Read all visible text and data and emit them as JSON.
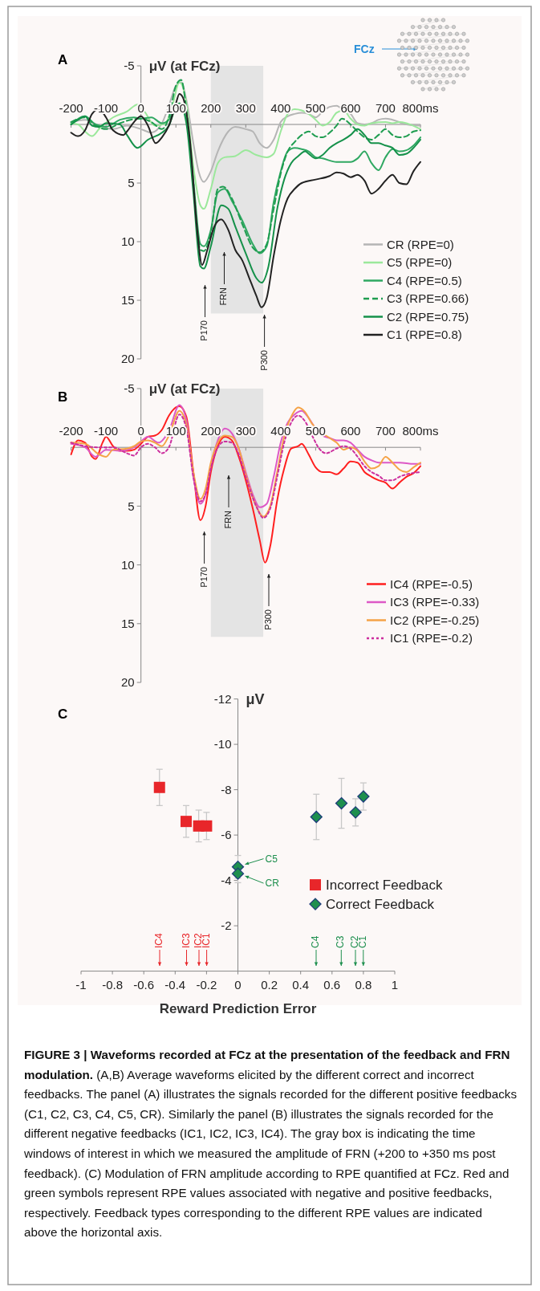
{
  "chart_data": [
    {
      "type": "line",
      "title": "A",
      "ylabel": "μV (at FCz)",
      "xlim": [
        -200,
        800
      ],
      "ylim": [
        20,
        -5
      ],
      "xticks": [
        -200,
        -100,
        0,
        100,
        200,
        300,
        400,
        500,
        600,
        700,
        {
          "value": 800,
          "label": "800ms"
        }
      ],
      "yticks": [
        -5,
        5,
        10,
        15,
        20
      ],
      "legend": "bottom right",
      "bands": [
        {
          "axis": "x",
          "from": 200,
          "to": 350,
          "color": "#e4e4e4"
        }
      ],
      "annotations": [
        "FCz",
        "P170",
        "FRN",
        "P300"
      ],
      "series": [
        {
          "name": "CR (RPE=0)",
          "color": "#b5b5b5",
          "x": [
            -200,
            -160,
            -120,
            -80,
            -40,
            0,
            30,
            60,
            80,
            100,
            115,
            130,
            150,
            165,
            180,
            200,
            220,
            250,
            270,
            300,
            320,
            340,
            360,
            380,
            400,
            420,
            440,
            460,
            480,
            500,
            520,
            540,
            560,
            580,
            600,
            620,
            640,
            660,
            680,
            700,
            720,
            760,
            800
          ],
          "values": [
            -0.2,
            -0.4,
            0.1,
            0.4,
            0.1,
            0.4,
            0.7,
            -0.1,
            -1.6,
            -3.3,
            -3.6,
            -2.1,
            1.6,
            4.0,
            4.9,
            4.0,
            2.3,
            0.6,
            0.2,
            0.4,
            0.6,
            1.6,
            2.0,
            1.3,
            -0.2,
            -0.7,
            -0.9,
            -1.0,
            -0.9,
            -0.6,
            -1.1,
            -1.5,
            -1.6,
            -1.2,
            -0.9,
            -0.1,
            0,
            -0.1,
            -0.4,
            -0.5,
            -0.4,
            0,
            0.1
          ]
        },
        {
          "name": "C5 (RPE=0)",
          "color": "#9be89b",
          "x": [
            -200,
            -180,
            -160,
            -140,
            -120,
            -80,
            -40,
            -10,
            10,
            40,
            70,
            90,
            110,
            130,
            150,
            170,
            180,
            200,
            220,
            240,
            270,
            300,
            330,
            360,
            380,
            400,
            420,
            440,
            460,
            480,
            500,
            520,
            540,
            560,
            580,
            600,
            620,
            640,
            660,
            700,
            720,
            740,
            760,
            800
          ],
          "values": [
            -0.1,
            0,
            0.6,
            1.0,
            0.4,
            -0.6,
            -1.1,
            -1.7,
            -1.1,
            0.1,
            -0.1,
            -1.6,
            -3.6,
            -1.8,
            3.6,
            6.9,
            7.2,
            5.5,
            3.3,
            2.8,
            2.7,
            2.2,
            2.6,
            2.8,
            2.5,
            0.6,
            -0.9,
            -1.3,
            -1.2,
            -0.9,
            -0.4,
            0.1,
            -0.2,
            -1.0,
            -1.2,
            -0.5,
            0,
            0.1,
            -0.1,
            -0.2,
            -0.1,
            -0.2,
            -0.1,
            0.4
          ]
        },
        {
          "name": "C4 (RPE=0.5)",
          "color": "#2fa862",
          "x": [
            -200,
            -160,
            -130,
            -100,
            -60,
            -20,
            0,
            30,
            60,
            80,
            100,
            110,
            130,
            150,
            170,
            180,
            200,
            220,
            240,
            260,
            290,
            320,
            340,
            360,
            380,
            400,
            420,
            440,
            460,
            480,
            500,
            520,
            560,
            600,
            620,
            640,
            660,
            680,
            700,
            720,
            740,
            760,
            780,
            800
          ],
          "values": [
            0,
            -0.7,
            0,
            0.2,
            -0.4,
            -0.6,
            -0.5,
            -0.6,
            -0.1,
            -0.4,
            -1.7,
            -1.8,
            -0.4,
            4.8,
            10.2,
            10.4,
            9.0,
            5.8,
            5.5,
            6.5,
            8.2,
            10.2,
            11.0,
            10.4,
            6.6,
            4.0,
            2.3,
            2.0,
            2.1,
            2.3,
            2.8,
            2.9,
            3.2,
            3.2,
            2.9,
            2.3,
            3.3,
            3.9,
            2.8,
            2.1,
            2.3,
            2.2,
            1.8,
            1.1
          ]
        },
        {
          "name": "C3 (RPE=0.66)",
          "color": "#1f9d50",
          "line_style": "dashed",
          "x": [
            -200,
            -160,
            -130,
            -100,
            -60,
            -30,
            0,
            30,
            60,
            80,
            100,
            115,
            130,
            150,
            170,
            180,
            200,
            220,
            235,
            260,
            290,
            320,
            340,
            360,
            380,
            400,
            420,
            440,
            460,
            480,
            500,
            520,
            540,
            560,
            575,
            600,
            620,
            640,
            660,
            680,
            700,
            720,
            740,
            760,
            780,
            800
          ],
          "values": [
            -0.2,
            -0.6,
            0.1,
            0.4,
            -0.1,
            -0.4,
            -0.5,
            -0.2,
            0.4,
            -0.6,
            -3.3,
            -3.8,
            -1.3,
            5.0,
            10.7,
            10.8,
            9.2,
            5.5,
            5.3,
            6.3,
            8.5,
            10.5,
            10.9,
            10.2,
            7.2,
            4.2,
            2.3,
            1.5,
            0.9,
            0.6,
            1.0,
            1.1,
            0.7,
            0.1,
            -0.5,
            0,
            0.6,
            1.1,
            1.3,
            0.9,
            0.4,
            0.9,
            1.1,
            1.0,
            0.6,
            0.5
          ]
        },
        {
          "name": "C2 (RPE=0.75)",
          "color": "#15914a",
          "x": [
            -200,
            -180,
            -160,
            -140,
            -120,
            -100,
            -60,
            -40,
            -10,
            20,
            60,
            80,
            100,
            110,
            130,
            150,
            170,
            180,
            200,
            230,
            250,
            270,
            300,
            330,
            345,
            365,
            390,
            410,
            430,
            450,
            470,
            480,
            500,
            520,
            540,
            560,
            580,
            600,
            620,
            640,
            660,
            680,
            700,
            720,
            740,
            760,
            780,
            800
          ],
          "values": [
            0,
            -0.4,
            -0.7,
            0.1,
            0.2,
            -0.1,
            0,
            0.9,
            2.0,
            1.3,
            0.7,
            0.1,
            -1.5,
            -1.8,
            -0.1,
            5.8,
            12.1,
            12.3,
            10.4,
            6.9,
            7.2,
            8.7,
            11.0,
            13.1,
            13.5,
            12.1,
            7.2,
            4.7,
            3.3,
            2.7,
            2.3,
            2.5,
            2.9,
            2.6,
            2.0,
            1.6,
            1.3,
            0.9,
            0.4,
            0.9,
            1.6,
            1.6,
            1.8,
            2.0,
            2.6,
            2.5,
            2.0,
            1.3
          ]
        },
        {
          "name": "C1 (RPE=0.8)",
          "color": "#222222",
          "x": [
            -200,
            -180,
            -160,
            -140,
            -120,
            -100,
            -80,
            -50,
            -40,
            -20,
            0,
            20,
            42,
            60,
            80,
            100,
            110,
            120,
            140,
            160,
            175,
            190,
            210,
            230,
            250,
            270,
            290,
            310,
            330,
            345,
            360,
            380,
            400,
            420,
            440,
            460,
            500,
            540,
            560,
            580,
            600,
            620,
            640,
            660,
            680,
            700,
            720,
            740,
            760,
            780,
            800
          ],
          "values": [
            0.7,
            1.0,
            0.5,
            -0.9,
            -1.3,
            -0.6,
            0.5,
            0.9,
            0.6,
            -0.2,
            -0.7,
            0.1,
            1.6,
            1.1,
            0.1,
            -1.8,
            -2.6,
            -2.3,
            1.3,
            8.7,
            12.0,
            10.7,
            8.7,
            8.1,
            9.0,
            10.7,
            11.6,
            13.1,
            14.6,
            15.6,
            14.8,
            11.2,
            8.2,
            6.3,
            5.5,
            5.0,
            4.7,
            4.4,
            4.1,
            4.2,
            4.5,
            4.3,
            4.8,
            5.9,
            5.5,
            4.8,
            4.3,
            5.0,
            5.1,
            4.0,
            3.2
          ]
        }
      ]
    },
    {
      "type": "line",
      "title": "B",
      "ylabel": "μV (at FCz)",
      "xlim": [
        -200,
        800
      ],
      "ylim": [
        20,
        -5
      ],
      "xticks": [
        -200,
        -100,
        0,
        100,
        200,
        300,
        400,
        500,
        600,
        700,
        {
          "value": 800,
          "label": "800ms"
        }
      ],
      "yticks": [
        -5,
        5,
        10,
        15,
        20
      ],
      "legend": "bottom right",
      "bands": [
        {
          "axis": "x",
          "from": 200,
          "to": 350,
          "color": "#e4e4e4"
        }
      ],
      "annotations": [
        "P170",
        "FRN",
        "P300"
      ],
      "series": [
        {
          "name": "IC4 (RPE=-0.5)",
          "color": "#ff1f1f",
          "x": [
            -200,
            -180,
            -160,
            -140,
            -130,
            -110,
            -100,
            -80,
            -60,
            -40,
            -20,
            0,
            20,
            40,
            60,
            80,
            100,
            110,
            130,
            150,
            170,
            185,
            200,
            220,
            240,
            260,
            280,
            300,
            320,
            340,
            355,
            370,
            390,
            410,
            430,
            450,
            460,
            480,
            500,
            520,
            540,
            560,
            580,
            600,
            620,
            640,
            660,
            680,
            700,
            720,
            740,
            760,
            780,
            800
          ],
          "values": [
            0.6,
            -0.6,
            -0.4,
            0.8,
            1.0,
            -0.4,
            -0.9,
            -0.1,
            0.3,
            0.3,
            0.2,
            -0.3,
            -0.9,
            -1.0,
            -1.5,
            -2.7,
            -3.4,
            -3.5,
            -2.6,
            2.1,
            6.2,
            5.0,
            2.1,
            -0.1,
            -0.9,
            -0.6,
            0.8,
            2.8,
            5.2,
            7.9,
            9.8,
            8.4,
            4.5,
            1.8,
            0.1,
            -0.1,
            -0.3,
            0.6,
            1.7,
            2.1,
            2.1,
            2.3,
            1.8,
            1.2,
            1.3,
            2.1,
            2.5,
            2.8,
            3.0,
            3.5,
            3.0,
            2.5,
            2.2,
            1.6
          ]
        },
        {
          "name": "IC3 (RPE=-0.33)",
          "color": "#dd58c6",
          "x": [
            -200,
            -160,
            -130,
            -100,
            -60,
            -20,
            0,
            20,
            50,
            80,
            110,
            130,
            150,
            170,
            185,
            200,
            220,
            240,
            260,
            280,
            300,
            320,
            340,
            360,
            380,
            400,
            420,
            440,
            460,
            480,
            500,
            520,
            540,
            560,
            580,
            600,
            620,
            640,
            660,
            680,
            700,
            740,
            780,
            800
          ],
          "values": [
            -0.3,
            0,
            0.8,
            0.2,
            0.3,
            0,
            -0.5,
            -0.9,
            -0.4,
            -1.4,
            -3.6,
            -2.3,
            2.5,
            4.8,
            4.0,
            1.6,
            -0.6,
            -1.6,
            -1.2,
            0.1,
            2.1,
            4.0,
            5.1,
            4.8,
            2.5,
            -0.4,
            -2.1,
            -2.8,
            -3.1,
            -2.5,
            -1.6,
            -1.0,
            -0.8,
            -0.6,
            -0.6,
            -0.4,
            0.2,
            0.8,
            1.1,
            1.3,
            1.3,
            1.3,
            1.4,
            1.4
          ]
        },
        {
          "name": "IC2 (RPE=-0.25)",
          "color": "#f5a347",
          "x": [
            -200,
            -160,
            -120,
            -100,
            -80,
            -40,
            -20,
            0,
            20,
            40,
            60,
            80,
            110,
            130,
            150,
            170,
            185,
            200,
            220,
            240,
            260,
            280,
            300,
            330,
            350,
            370,
            390,
            410,
            430,
            450,
            470,
            490,
            510,
            540,
            560,
            580,
            600,
            620,
            640,
            660,
            680,
            700,
            720,
            740,
            760,
            780,
            800
          ],
          "values": [
            -0.4,
            -0.3,
            0.6,
            0.8,
            0.2,
            0.1,
            -0.1,
            -0.5,
            -0.6,
            -0.4,
            -0.1,
            -1.0,
            -3.1,
            -1.9,
            2.1,
            4.4,
            3.5,
            1.3,
            -0.4,
            -1.0,
            -0.9,
            0.1,
            2.3,
            5.0,
            5.9,
            5.0,
            2.1,
            -0.9,
            -2.6,
            -3.4,
            -3.0,
            -2.0,
            -1.4,
            -0.8,
            -0.4,
            0.2,
            0,
            0.3,
            1.2,
            1.8,
            1.6,
            0.8,
            1.3,
            1.9,
            2.1,
            1.7,
            1.3
          ]
        },
        {
          "name": "IC1 (RPE=-0.2)",
          "color": "#cc2f9e",
          "line_style": "dotted",
          "x": [
            -200,
            -160,
            -120,
            -80,
            -40,
            -20,
            0,
            20,
            40,
            60,
            80,
            110,
            130,
            150,
            170,
            185,
            200,
            220,
            240,
            260,
            280,
            300,
            330,
            350,
            370,
            390,
            410,
            430,
            450,
            470,
            490,
            510,
            530,
            560,
            580,
            600,
            620,
            640,
            660,
            680,
            700,
            720,
            740,
            760,
            800
          ],
          "values": [
            -0.4,
            -0.1,
            0,
            0,
            0.5,
            0.7,
            0,
            -0.3,
            0,
            0.5,
            0,
            -2.8,
            -1.6,
            2.5,
            4.6,
            4.0,
            1.8,
            0,
            -0.5,
            -0.4,
            0.6,
            2.5,
            5.0,
            6.0,
            5.2,
            2.5,
            -0.4,
            -2.1,
            -2.7,
            -2.2,
            -1.0,
            0.1,
            0.5,
            0.1,
            -0.1,
            0.1,
            0.8,
            1.6,
            2.1,
            2.4,
            2.8,
            2.8,
            2.5,
            2.3,
            2.1
          ]
        }
      ]
    },
    {
      "type": "scatter",
      "title": "C",
      "ylabel": "μV",
      "xlabel": "Reward Prediction Error",
      "xlim": [
        -1,
        1
      ],
      "ylim": [
        0,
        -12
      ],
      "xticks": [
        -1,
        -0.8,
        -0.6,
        -0.4,
        -0.2,
        0,
        0.2,
        0.4,
        0.6,
        0.8,
        1
      ],
      "yticks": [
        -12,
        -10,
        -8,
        -6,
        -4,
        -2
      ],
      "legend": "right",
      "series": [
        {
          "name": "Incorrect Feedback",
          "color": "#e8262a",
          "marker": "square",
          "x": [
            -0.5,
            -0.33,
            -0.25,
            -0.2
          ],
          "values": [
            -8.1,
            -6.6,
            -6.4,
            -6.4
          ],
          "errors": [
            0.8,
            0.7,
            0.7,
            0.6
          ]
        },
        {
          "name": "Correct Feedback",
          "color": "#1e8f4e",
          "marker": "diamond",
          "x": [
            0,
            0,
            0.5,
            0.66,
            0.75,
            0.8
          ],
          "values": [
            -4.6,
            -4.3,
            -6.8,
            -7.4,
            -7.0,
            -7.7
          ],
          "errors": [
            0.5,
            0.4,
            1.0,
            1.1,
            0.6,
            0.6
          ]
        }
      ],
      "annotations": [
        "C5",
        "CR",
        "IC4",
        "IC3",
        "IC2",
        "IC1",
        "C4",
        "C3",
        "C2",
        "C1",
        "FIGURE 3 | Waveforms recorded at FCz at the presentation of the feedback and FRN modulation.",
        "(A,B) Average waveforms elicited by the different correct and incorrect feedbacks. The panel (A) illustrates the signals recorded for the different positive feedbacks (C1, C2, C3, C4, C5, CR). Similarly the panel (B) illustrates the signals recorded for the different negative feedbacks (IC1, IC2, IC3, IC4). The gray box is indicating the time windows of interest in which we measured the amplitude of FRN (+200 to +350 ms post feedback). (C) Modulation of FRN amplitude according to RPE quantified at FCz. Red and green symbols represent RPE values associated with negative and positive feedbacks, respectively. Feedback types corresponding to the different RPE values are indicated above the horizontal axis."
      ]
    }
  ]
}
